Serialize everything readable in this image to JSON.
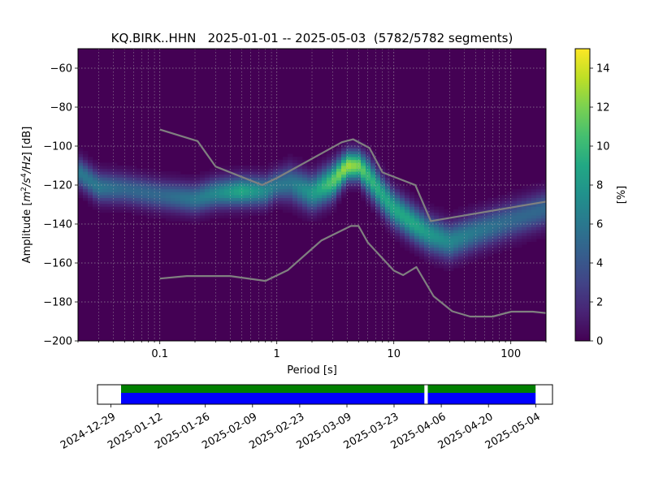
{
  "chart_data": [
    {
      "type": "heatmap",
      "title": "KQ.BIRK..HHN   2025-01-01 -- 2025-05-03  (5782/5782 segments)",
      "xlabel": "Period [s]",
      "ylabel_parts": {
        "base": "Amplitude [",
        "m": "m",
        "exp1": "2",
        "slash": "/s",
        "exp2": "4",
        "hz": "/Hz",
        "unit": "] [dB]"
      },
      "x_scale": "log",
      "xlim": [
        0.02,
        200
      ],
      "ylim": [
        -200,
        -50
      ],
      "xticks": [
        {
          "value": 0.1,
          "label": "0.1"
        },
        {
          "value": 1,
          "label": "1"
        },
        {
          "value": 10,
          "label": "10"
        },
        {
          "value": 100,
          "label": "100"
        }
      ],
      "yticks": [
        {
          "value": -60,
          "label": "−60"
        },
        {
          "value": -80,
          "label": "−80"
        },
        {
          "value": -100,
          "label": "−100"
        },
        {
          "value": -120,
          "label": "−120"
        },
        {
          "value": -140,
          "label": "−140"
        },
        {
          "value": -160,
          "label": "−160"
        },
        {
          "value": -180,
          "label": "−180"
        },
        {
          "value": -200,
          "label": "−200"
        }
      ],
      "grid": true,
      "colormap": "viridis",
      "colorbar": {
        "label": "[%]",
        "range": [
          0,
          15
        ],
        "ticks": [
          {
            "value": 0,
            "label": "0"
          },
          {
            "value": 2,
            "label": "2"
          },
          {
            "value": 4,
            "label": "4"
          },
          {
            "value": 6,
            "label": "6"
          },
          {
            "value": 8,
            "label": "8"
          },
          {
            "value": 10,
            "label": "10"
          },
          {
            "value": 12,
            "label": "12"
          },
          {
            "value": 14,
            "label": "14"
          }
        ]
      },
      "density_mode": {
        "x": [
          0.02,
          0.03,
          0.05,
          0.1,
          0.2,
          0.3,
          0.5,
          0.8,
          1.0,
          1.3,
          2.0,
          3.0,
          4.0,
          5.0,
          6.0,
          8.0,
          10,
          15,
          20,
          30,
          50,
          100,
          200
        ],
        "center": [
          -113,
          -121,
          -122,
          -125,
          -127,
          -124,
          -123,
          -123,
          -120,
          -119,
          -124,
          -118,
          -110,
          -110,
          -115,
          -125,
          -132,
          -140,
          -145,
          -149,
          -144,
          -138,
          -132
        ],
        "width": [
          5,
          5,
          5,
          5,
          5,
          5,
          5,
          5,
          5,
          6,
          6,
          6,
          5,
          5,
          6,
          6,
          6,
          6,
          6,
          6,
          6,
          6,
          6
        ],
        "peak": [
          6,
          6,
          5,
          5,
          6,
          7,
          9,
          7,
          6,
          6,
          8,
          11,
          13,
          12,
          10,
          9,
          9,
          9,
          8,
          7,
          6,
          5,
          5
        ]
      },
      "series": [
        {
          "name": "",
          "x": [
            0.1,
            0.21,
            0.3,
            0.75,
            1.0,
            3.6,
            4.5,
            6.2,
            8.0,
            15.3,
            20.7,
            200
          ],
          "y": [
            -91.5,
            -97.4,
            -110.5,
            -120.0,
            -116.4,
            -98.0,
            -96.5,
            -101.0,
            -113.5,
            -120.0,
            -138.5,
            -128.5
          ]
        },
        {
          "name": "",
          "x": [
            0.1,
            0.17,
            0.4,
            0.8,
            1.24,
            2.4,
            4.3,
            5.0,
            6.0,
            10.0,
            12.0,
            15.6,
            21.9,
            31.6,
            45.0,
            70.0,
            101,
            154,
            200
          ],
          "y": [
            -168.0,
            -166.7,
            -166.7,
            -169.2,
            -163.7,
            -148.5,
            -141.0,
            -141.0,
            -149.5,
            -163.9,
            -166.2,
            -162.1,
            -177.1,
            -184.8,
            -187.5,
            -187.5,
            -185.0,
            -185.0,
            -185.7
          ]
        }
      ]
    },
    {
      "type": "timeline",
      "xlim": [
        "2024-12-25",
        "2025-05-09"
      ],
      "xticks": [
        {
          "value": "2024-12-29",
          "label": "2024-12-29"
        },
        {
          "value": "2025-01-12",
          "label": "2025-01-12"
        },
        {
          "value": "2025-01-26",
          "label": "2025-01-26"
        },
        {
          "value": "2025-02-09",
          "label": "2025-02-09"
        },
        {
          "value": "2025-02-23",
          "label": "2025-02-23"
        },
        {
          "value": "2025-03-09",
          "label": "2025-03-09"
        },
        {
          "value": "2025-03-23",
          "label": "2025-03-23"
        },
        {
          "value": "2025-04-06",
          "label": "2025-04-06"
        },
        {
          "value": "2025-04-20",
          "label": "2025-04-20"
        },
        {
          "value": "2025-05-04",
          "label": "2025-05-04"
        }
      ],
      "coverage": [
        {
          "start": "2025-01-01",
          "end": "2025-03-31"
        },
        {
          "start": "2025-04-02",
          "end": "2025-05-03"
        }
      ],
      "colors": {
        "data": "#0000ff",
        "segments": "#008000"
      }
    }
  ]
}
